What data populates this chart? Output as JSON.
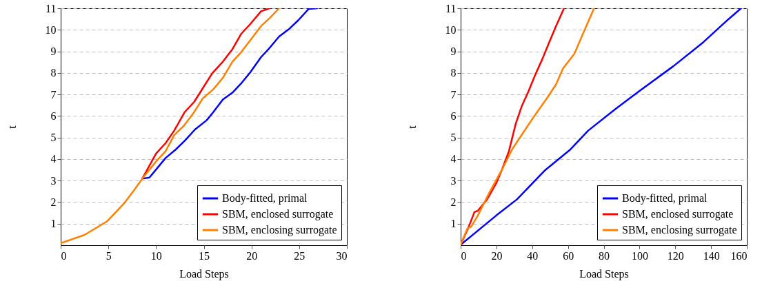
{
  "chart_data": [
    {
      "type": "line",
      "xlabel": "Load Steps",
      "ylabel": "t",
      "xlim": [
        0,
        30
      ],
      "ylim": [
        0,
        11
      ],
      "xticks": [
        0,
        5,
        10,
        15,
        20,
        25,
        30
      ],
      "yticks": [
        1,
        2,
        3,
        4,
        5,
        6,
        7,
        8,
        9,
        10,
        11
      ],
      "grid": "y",
      "legend": "bottom right",
      "series": [
        {
          "name": "Body-fitted, primal",
          "color": "#0000ff",
          "x": [
            8.55,
            9.3,
            11,
            12,
            13,
            14.1,
            15.3,
            16,
            17,
            18,
            18.9,
            19.9,
            21,
            21.9,
            22.9,
            24,
            24.9,
            26,
            26.9
          ],
          "values": [
            3.09,
            3.14,
            4.05,
            4.42,
            4.85,
            5.38,
            5.8,
            6.18,
            6.76,
            7.08,
            7.5,
            8.04,
            8.73,
            9.16,
            9.69,
            10.06,
            10.44,
            10.97,
            11
          ]
        },
        {
          "name": "SBM, enclosed surrogate",
          "color": "#ff0000",
          "x": [
            8.55,
            10,
            11,
            11.9,
            13,
            14,
            14.9,
            15.9,
            17,
            18,
            18.9,
            19.9,
            21,
            21.9
          ],
          "values": [
            3.09,
            4.26,
            4.74,
            5.32,
            6.18,
            6.66,
            7.29,
            7.99,
            8.52,
            9.1,
            9.8,
            10.28,
            10.86,
            11
          ]
        },
        {
          "name": "SBM, enclosing surrogate",
          "color": "#ff8000",
          "x": [
            0,
            2.5,
            4.9,
            6.6,
            7.7,
            8.55,
            10,
            11,
            11.9,
            12.9,
            13.9,
            14.9,
            16,
            17,
            18,
            18.9,
            19.9,
            21,
            21.9,
            22.9
          ],
          "values": [
            0.09,
            0.48,
            1.12,
            1.92,
            2.56,
            3.09,
            3.89,
            4.37,
            5.11,
            5.54,
            6.12,
            6.82,
            7.24,
            7.77,
            8.52,
            8.95,
            9.53,
            10.17,
            10.54,
            11
          ]
        }
      ]
    },
    {
      "type": "line",
      "xlabel": "Load Steps",
      "ylabel": "t",
      "xlim": [
        0,
        160
      ],
      "ylim": [
        0,
        11
      ],
      "xticks": [
        0,
        20,
        40,
        60,
        80,
        100,
        120,
        140,
        160
      ],
      "yticks": [
        1,
        2,
        3,
        4,
        5,
        6,
        7,
        8,
        9,
        10,
        11
      ],
      "grid": "y",
      "legend": "bottom right",
      "series": [
        {
          "name": "Body-fitted, primal",
          "color": "#0000ff",
          "x": [
            0,
            19.9,
            31.5,
            46.9,
            61,
            71.3,
            86.8,
            99.6,
            118.9,
            135.6,
            149.7,
            156.8
          ],
          "values": [
            0.02,
            1.38,
            2.13,
            3.46,
            4.42,
            5.32,
            6.34,
            7.14,
            8.31,
            9.42,
            10.49,
            11
          ]
        },
        {
          "name": "SBM, enclosed surrogate",
          "color": "#ff0000",
          "x": [
            0,
            4.5,
            7.7,
            9.6,
            14.8,
            19.9,
            23.1,
            27,
            30.8,
            34.1,
            37.9,
            41.8,
            45.6,
            49.5,
            53.3,
            55.9,
            57.8
          ],
          "values": [
            0.02,
            0.85,
            1.54,
            1.6,
            2.13,
            2.88,
            3.51,
            4.37,
            5.64,
            6.44,
            7.14,
            7.93,
            8.63,
            9.42,
            10.17,
            10.65,
            11
          ]
        },
        {
          "name": "SBM, enclosing surrogate",
          "color": "#ff8000",
          "x": [
            0,
            3.9,
            5.8,
            9.6,
            16.1,
            23.8,
            28.9,
            35.3,
            41.8,
            48.2,
            53.3,
            57.2,
            63.6,
            68.8,
            74.6
          ],
          "values": [
            0.02,
            0.8,
            0.85,
            1.38,
            2.45,
            3.62,
            4.47,
            5.27,
            6.07,
            6.82,
            7.46,
            8.2,
            8.89,
            9.9,
            11
          ]
        }
      ]
    }
  ]
}
